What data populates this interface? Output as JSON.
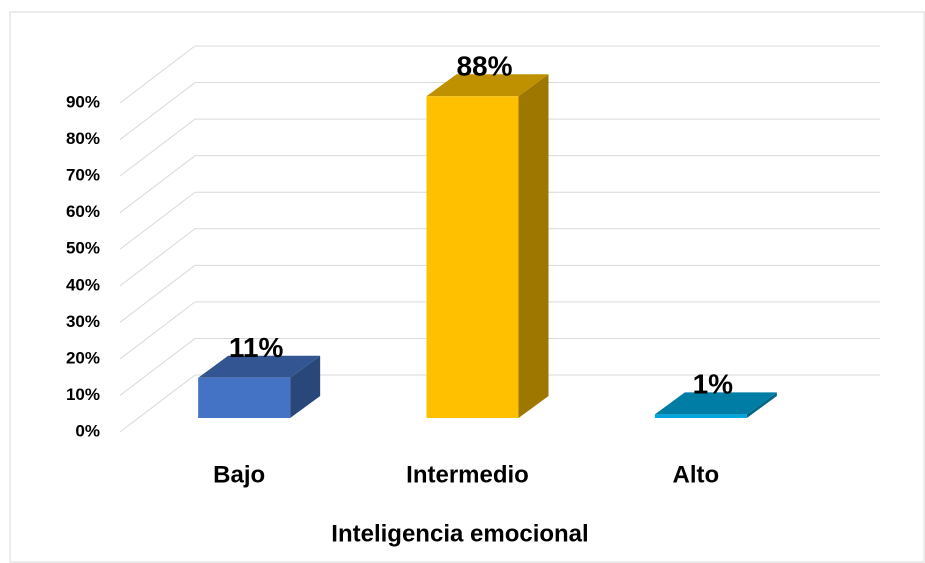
{
  "chart_data": {
    "type": "bar3d",
    "x_axis_label": "Inteligencia emocional",
    "categories": [
      "Bajo",
      "Intermedio",
      "Alto"
    ],
    "values": [
      11,
      88,
      1
    ],
    "value_labels": [
      "11%",
      "88%",
      "1%"
    ],
    "colors": [
      "#4472c4",
      "#ffc000",
      "#00a6dc"
    ],
    "ylim": [
      0,
      90
    ],
    "yticks": [
      {
        "value": 0,
        "label": "0%"
      },
      {
        "value": 10,
        "label": "10%"
      },
      {
        "value": 20,
        "label": "20%"
      },
      {
        "value": 30,
        "label": "30%"
      },
      {
        "value": 40,
        "label": "40%"
      },
      {
        "value": 50,
        "label": "50%"
      },
      {
        "value": 60,
        "label": "60%"
      },
      {
        "value": 70,
        "label": "70%"
      },
      {
        "value": 80,
        "label": "80%"
      },
      {
        "value": 90,
        "label": "90%"
      }
    ],
    "grid": true
  }
}
